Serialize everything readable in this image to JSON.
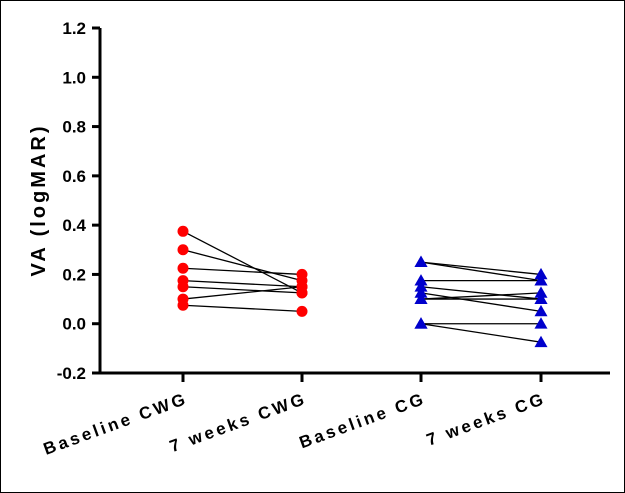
{
  "chart_data": {
    "type": "scatter",
    "title": "",
    "ylabel": "VA (logMAR)",
    "xlabel": "",
    "ylim": [
      -0.2,
      1.2
    ],
    "yticks": [
      "1.2",
      "1.0",
      "0.8",
      "0.6",
      "0.4",
      "0.2",
      "0.0",
      "-0.2"
    ],
    "categories": [
      "Baseline CWG",
      "7 weeks CWG",
      "Baseline CG",
      "7 weeks CG"
    ],
    "grid": false,
    "series": [
      {
        "group": "CWG",
        "color": "#ff0000",
        "marker": "circle",
        "pairs": [
          [
            0.375,
            0.125
          ],
          [
            0.3,
            0.175
          ],
          [
            0.225,
            0.2
          ],
          [
            0.175,
            0.15
          ],
          [
            0.15,
            0.125
          ],
          [
            0.1,
            0.15
          ],
          [
            0.075,
            0.05
          ]
        ]
      },
      {
        "group": "CG",
        "color": "#0000cc",
        "marker": "triangle",
        "pairs": [
          [
            0.25,
            0.2
          ],
          [
            0.25,
            0.175
          ],
          [
            0.175,
            0.175
          ],
          [
            0.15,
            0.1
          ],
          [
            0.125,
            0.05
          ],
          [
            0.1,
            0.125
          ],
          [
            0.1,
            0.1
          ],
          [
            0.0,
            0.0
          ],
          [
            0.0,
            -0.075
          ]
        ]
      }
    ]
  }
}
